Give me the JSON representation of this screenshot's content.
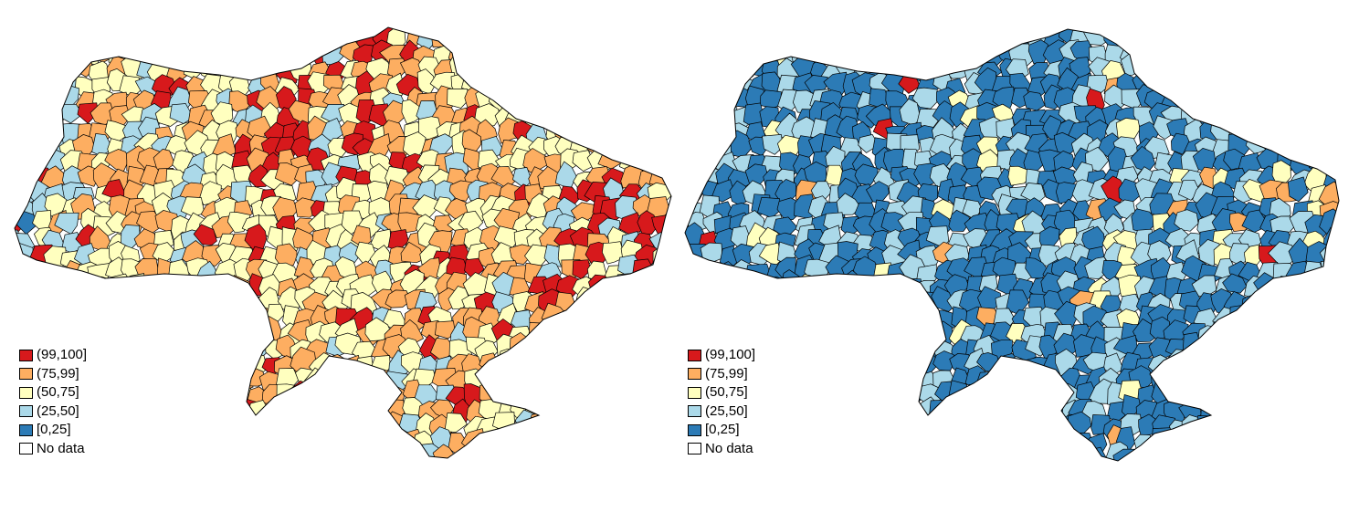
{
  "legend": {
    "items": [
      {
        "label": "(99,100]",
        "color": "#d7191c"
      },
      {
        "label": "(75,99]",
        "color": "#fdae61"
      },
      {
        "label": "(50,75]",
        "color": "#ffffbf"
      },
      {
        "label": "(25,50]",
        "color": "#abd9e9"
      },
      {
        "label": "[0,25]",
        "color": "#2c7bb6"
      },
      {
        "label": "No data",
        "color": "#ffffff"
      }
    ]
  },
  "maps": [
    {
      "id": "left",
      "dominant_class": "(50,75]"
    },
    {
      "id": "right",
      "dominant_class": "[0,25]"
    }
  ]
}
